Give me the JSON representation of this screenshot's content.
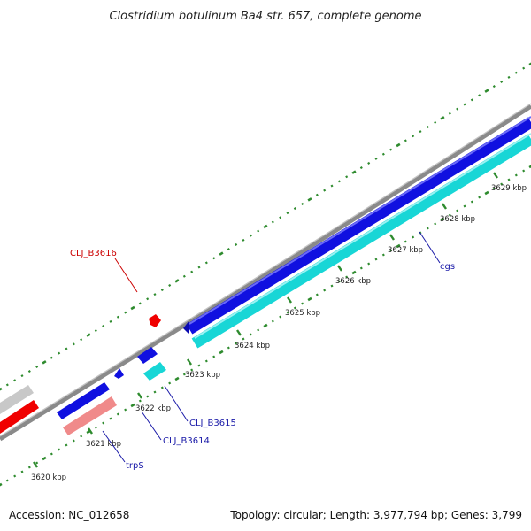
{
  "title": "Clostridium botulinum Ba4 str. 657, complete genome",
  "footer": {
    "accession": "Accession: NC_012658",
    "summary": "Topology: circular; Length: 3,977,794 bp; Genes: 3,799"
  },
  "colors": {
    "backbone": "#8a8a8a",
    "dots": "#2e8b2e",
    "forward_cds": "#1010e0",
    "reverse_cds": "#18d6d6",
    "highlight_fwd": "#f00000",
    "highlight_rev": "#f08a8a",
    "neutral": "#c8c8c8",
    "label_red": "#cc0000",
    "label_blue": "#1a1aa8"
  },
  "ticks": [
    {
      "label": "3620 kbp"
    },
    {
      "label": "3621 kbp"
    },
    {
      "label": "3622 kbp"
    },
    {
      "label": "3623 kbp"
    },
    {
      "label": "3624 kbp"
    },
    {
      "label": "3625 kbp"
    },
    {
      "label": "3626 kbp"
    },
    {
      "label": "3627 kbp"
    },
    {
      "label": "3628 kbp"
    },
    {
      "label": "3629 kbp"
    }
  ],
  "genes": [
    {
      "name": "CLJ_B3616",
      "color": "label_red"
    },
    {
      "name": "cgs",
      "color": "label_blue"
    },
    {
      "name": "CLJ_B3615",
      "color": "label_blue"
    },
    {
      "name": "CLJ_B3614",
      "color": "label_blue"
    },
    {
      "name": "trpS",
      "color": "label_blue"
    }
  ]
}
